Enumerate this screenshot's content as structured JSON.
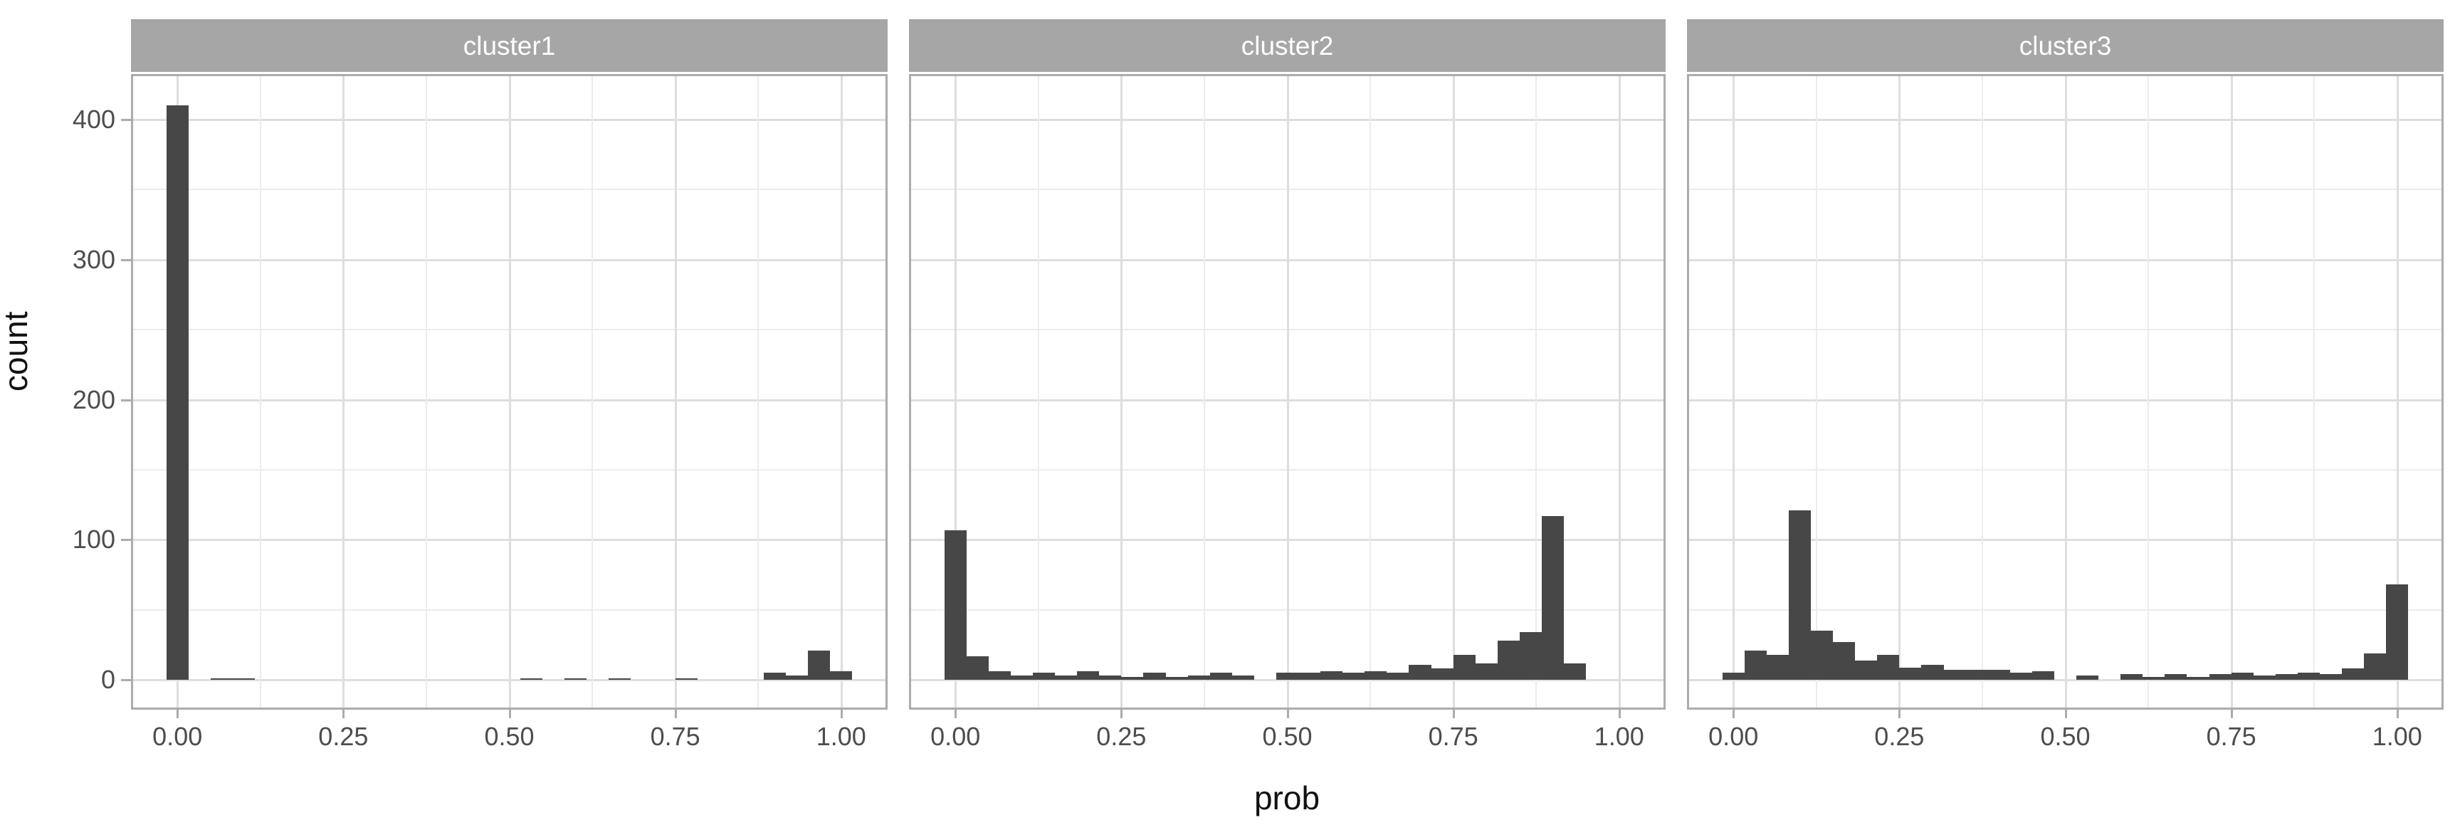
{
  "chart_data": {
    "type": "bar",
    "subtype": "faceted-histogram",
    "title": "",
    "xlabel": "prob",
    "ylabel": "count",
    "binwidth": 0.03333,
    "bin_centers": [
      0,
      0.0333,
      0.0667,
      0.1,
      0.1333,
      0.1667,
      0.2,
      0.2333,
      0.2667,
      0.3,
      0.3333,
      0.3667,
      0.4,
      0.4333,
      0.4667,
      0.5,
      0.5333,
      0.5667,
      0.6,
      0.6333,
      0.6667,
      0.7,
      0.7333,
      0.7667,
      0.8,
      0.8333,
      0.8667,
      0.9,
      0.9333,
      0.9667,
      1.0
    ],
    "facets": [
      {
        "label": "cluster1",
        "counts": [
          410,
          0,
          1,
          1,
          0,
          0,
          0,
          0,
          0,
          0,
          0,
          0,
          0,
          0,
          0,
          0,
          1,
          0,
          1,
          0,
          1,
          0,
          0,
          1,
          0,
          0,
          0,
          5,
          3,
          21,
          6
        ]
      },
      {
        "label": "cluster2",
        "counts": [
          107,
          17,
          6,
          3,
          5,
          3,
          6,
          3,
          2,
          5,
          2,
          3,
          5,
          3,
          0,
          5,
          5,
          6,
          5,
          6,
          5,
          11,
          8,
          18,
          12,
          28,
          34,
          117,
          12,
          0,
          0
        ]
      },
      {
        "label": "cluster3",
        "counts": [
          5,
          21,
          18,
          121,
          35,
          27,
          14,
          18,
          9,
          11,
          7,
          7,
          7,
          5,
          6,
          0,
          3,
          0,
          4,
          2,
          4,
          2,
          4,
          5,
          3,
          4,
          5,
          4,
          8,
          19,
          68
        ]
      }
    ],
    "x_ticks": {
      "values": [
        0,
        0.25,
        0.5,
        0.75,
        1.0
      ],
      "labels": [
        "0.00",
        "0.25",
        "0.50",
        "0.75",
        "1.00"
      ]
    },
    "x_minor": [
      0.125,
      0.375,
      0.625,
      0.875
    ],
    "y_ticks": {
      "values": [
        0,
        100,
        200,
        300,
        400
      ],
      "labels": [
        "0",
        "100",
        "200",
        "300",
        "400"
      ]
    },
    "y_minor": [
      50,
      150,
      250,
      350
    ],
    "xlim": [
      -0.0667,
      1.0667
    ],
    "ylim": [
      -19.7,
      430.9
    ],
    "grid": true,
    "legend": "none",
    "colors": {
      "bar_fill": "#474747",
      "strip_background": "#A6A6A6",
      "strip_text": "#FFFFFF",
      "panel_border": "#ACACAC",
      "grid_major": "#DEDEDE",
      "grid_minor": "#ECECEC",
      "tick_label": "#4D4D4D",
      "axis_title": "#111111",
      "panel_background": "#FFFFFF"
    }
  }
}
